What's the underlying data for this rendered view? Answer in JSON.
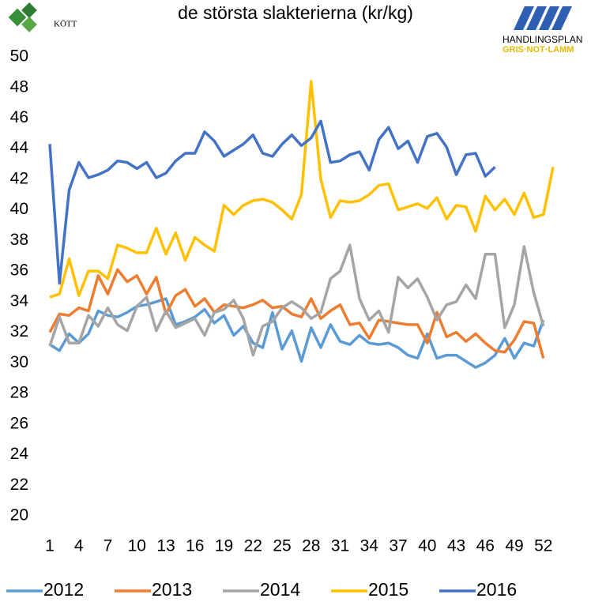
{
  "logos": {
    "left": "KÖTT",
    "right_title": "HANDLINGSPLAN",
    "right_subtitle": "GRIS·NOT·LAMM"
  },
  "chart_data": {
    "type": "line",
    "title": "de största slakterierna (kr/kg)",
    "x": [
      1,
      2,
      3,
      4,
      5,
      6,
      7,
      8,
      9,
      10,
      11,
      12,
      13,
      14,
      15,
      16,
      17,
      18,
      19,
      20,
      21,
      22,
      23,
      24,
      25,
      26,
      27,
      28,
      29,
      30,
      31,
      32,
      33,
      34,
      35,
      36,
      37,
      38,
      39,
      40,
      41,
      42,
      43,
      44,
      45,
      46,
      47,
      48,
      49,
      50,
      51,
      52,
      53
    ],
    "xlim": [
      1,
      53
    ],
    "xticks": [
      1,
      4,
      7,
      10,
      13,
      16,
      19,
      22,
      25,
      28,
      31,
      34,
      37,
      40,
      43,
      46,
      49,
      52
    ],
    "ylim": [
      20,
      50
    ],
    "yticks": [
      20,
      22,
      24,
      26,
      28,
      30,
      32,
      34,
      36,
      38,
      40,
      42,
      44,
      46,
      48,
      50
    ],
    "grid": false,
    "legend": "bottom",
    "series": [
      {
        "name": "2012",
        "color": "#5b9bd5",
        "values": [
          31.2,
          30.8,
          31.9,
          31.3,
          31.9,
          33.4,
          33.1,
          33.0,
          33.3,
          33.7,
          33.8,
          34.0,
          34.2,
          32.5,
          32.7,
          33.0,
          33.5,
          32.6,
          33.1,
          31.8,
          32.4,
          31.3,
          31.0,
          33.3,
          30.9,
          32.1,
          30.1,
          32.3,
          31.0,
          32.5,
          31.4,
          31.2,
          31.8,
          31.3,
          31.2,
          31.3,
          31.0,
          30.5,
          30.3,
          31.9,
          30.3,
          30.5,
          30.5,
          30.1,
          29.7,
          30.0,
          30.5,
          31.6,
          30.3,
          31.3,
          31.1,
          32.8,
          null
        ]
      },
      {
        "name": "2013",
        "color": "#ed7d31",
        "values": [
          32.0,
          33.2,
          33.1,
          33.6,
          33.4,
          35.7,
          34.5,
          36.1,
          35.3,
          35.7,
          34.5,
          35.6,
          33.2,
          34.4,
          34.8,
          33.7,
          34.2,
          33.3,
          33.8,
          33.7,
          33.6,
          33.8,
          34.1,
          33.6,
          33.7,
          33.2,
          33.0,
          34.2,
          32.9,
          33.4,
          33.8,
          32.5,
          32.6,
          31.6,
          32.8,
          32.7,
          32.6,
          32.5,
          32.5,
          31.3,
          33.3,
          31.7,
          32.0,
          31.4,
          31.9,
          31.3,
          30.8,
          30.7,
          31.5,
          32.7,
          32.6,
          30.3,
          null
        ]
      },
      {
        "name": "2014",
        "color": "#a5a5a5",
        "values": [
          31.1,
          33.0,
          31.3,
          31.3,
          33.1,
          32.4,
          33.6,
          32.5,
          32.1,
          33.7,
          34.3,
          32.1,
          33.4,
          32.3,
          32.6,
          32.9,
          31.8,
          33.3,
          33.5,
          34.1,
          32.9,
          30.5,
          32.4,
          32.7,
          33.6,
          34.0,
          33.6,
          32.9,
          33.3,
          35.5,
          36.0,
          37.7,
          34.2,
          32.8,
          33.4,
          32.0,
          35.6,
          34.9,
          35.5,
          34.3,
          32.8,
          33.8,
          34.0,
          35.1,
          34.2,
          37.1,
          37.1,
          32.3,
          33.8,
          37.6,
          34.6,
          32.4,
          null
        ]
      },
      {
        "name": "2015",
        "color": "#ffc000",
        "values": [
          34.3,
          34.5,
          36.8,
          34.4,
          36.0,
          36.0,
          35.5,
          37.7,
          37.5,
          37.2,
          37.2,
          38.8,
          37.1,
          38.5,
          36.7,
          38.2,
          37.7,
          37.3,
          40.3,
          39.7,
          40.3,
          40.6,
          40.7,
          40.5,
          40.0,
          39.4,
          41.0,
          48.4,
          42.0,
          39.5,
          40.6,
          40.5,
          40.6,
          41.0,
          41.6,
          41.7,
          40.0,
          40.2,
          40.4,
          40.1,
          40.8,
          39.4,
          40.3,
          40.2,
          38.6,
          40.9,
          40.0,
          40.7,
          39.7,
          41.1,
          39.5,
          39.7,
          42.8
        ]
      },
      {
        "name": "2016",
        "color": "#4472c4",
        "values": [
          44.3,
          35.2,
          41.3,
          43.1,
          42.1,
          42.3,
          42.6,
          43.2,
          43.1,
          42.7,
          43.1,
          42.1,
          42.4,
          43.2,
          43.7,
          43.7,
          45.1,
          44.5,
          43.5,
          43.9,
          44.3,
          44.9,
          43.7,
          43.5,
          44.3,
          44.9,
          44.2,
          44.7,
          45.8,
          43.1,
          43.2,
          43.6,
          43.8,
          42.6,
          44.6,
          45.4,
          44.0,
          44.5,
          43.1,
          44.8,
          45.0,
          44.1,
          42.3,
          43.6,
          43.7,
          42.2,
          42.8,
          null,
          null,
          null,
          null,
          null,
          null
        ]
      }
    ]
  }
}
